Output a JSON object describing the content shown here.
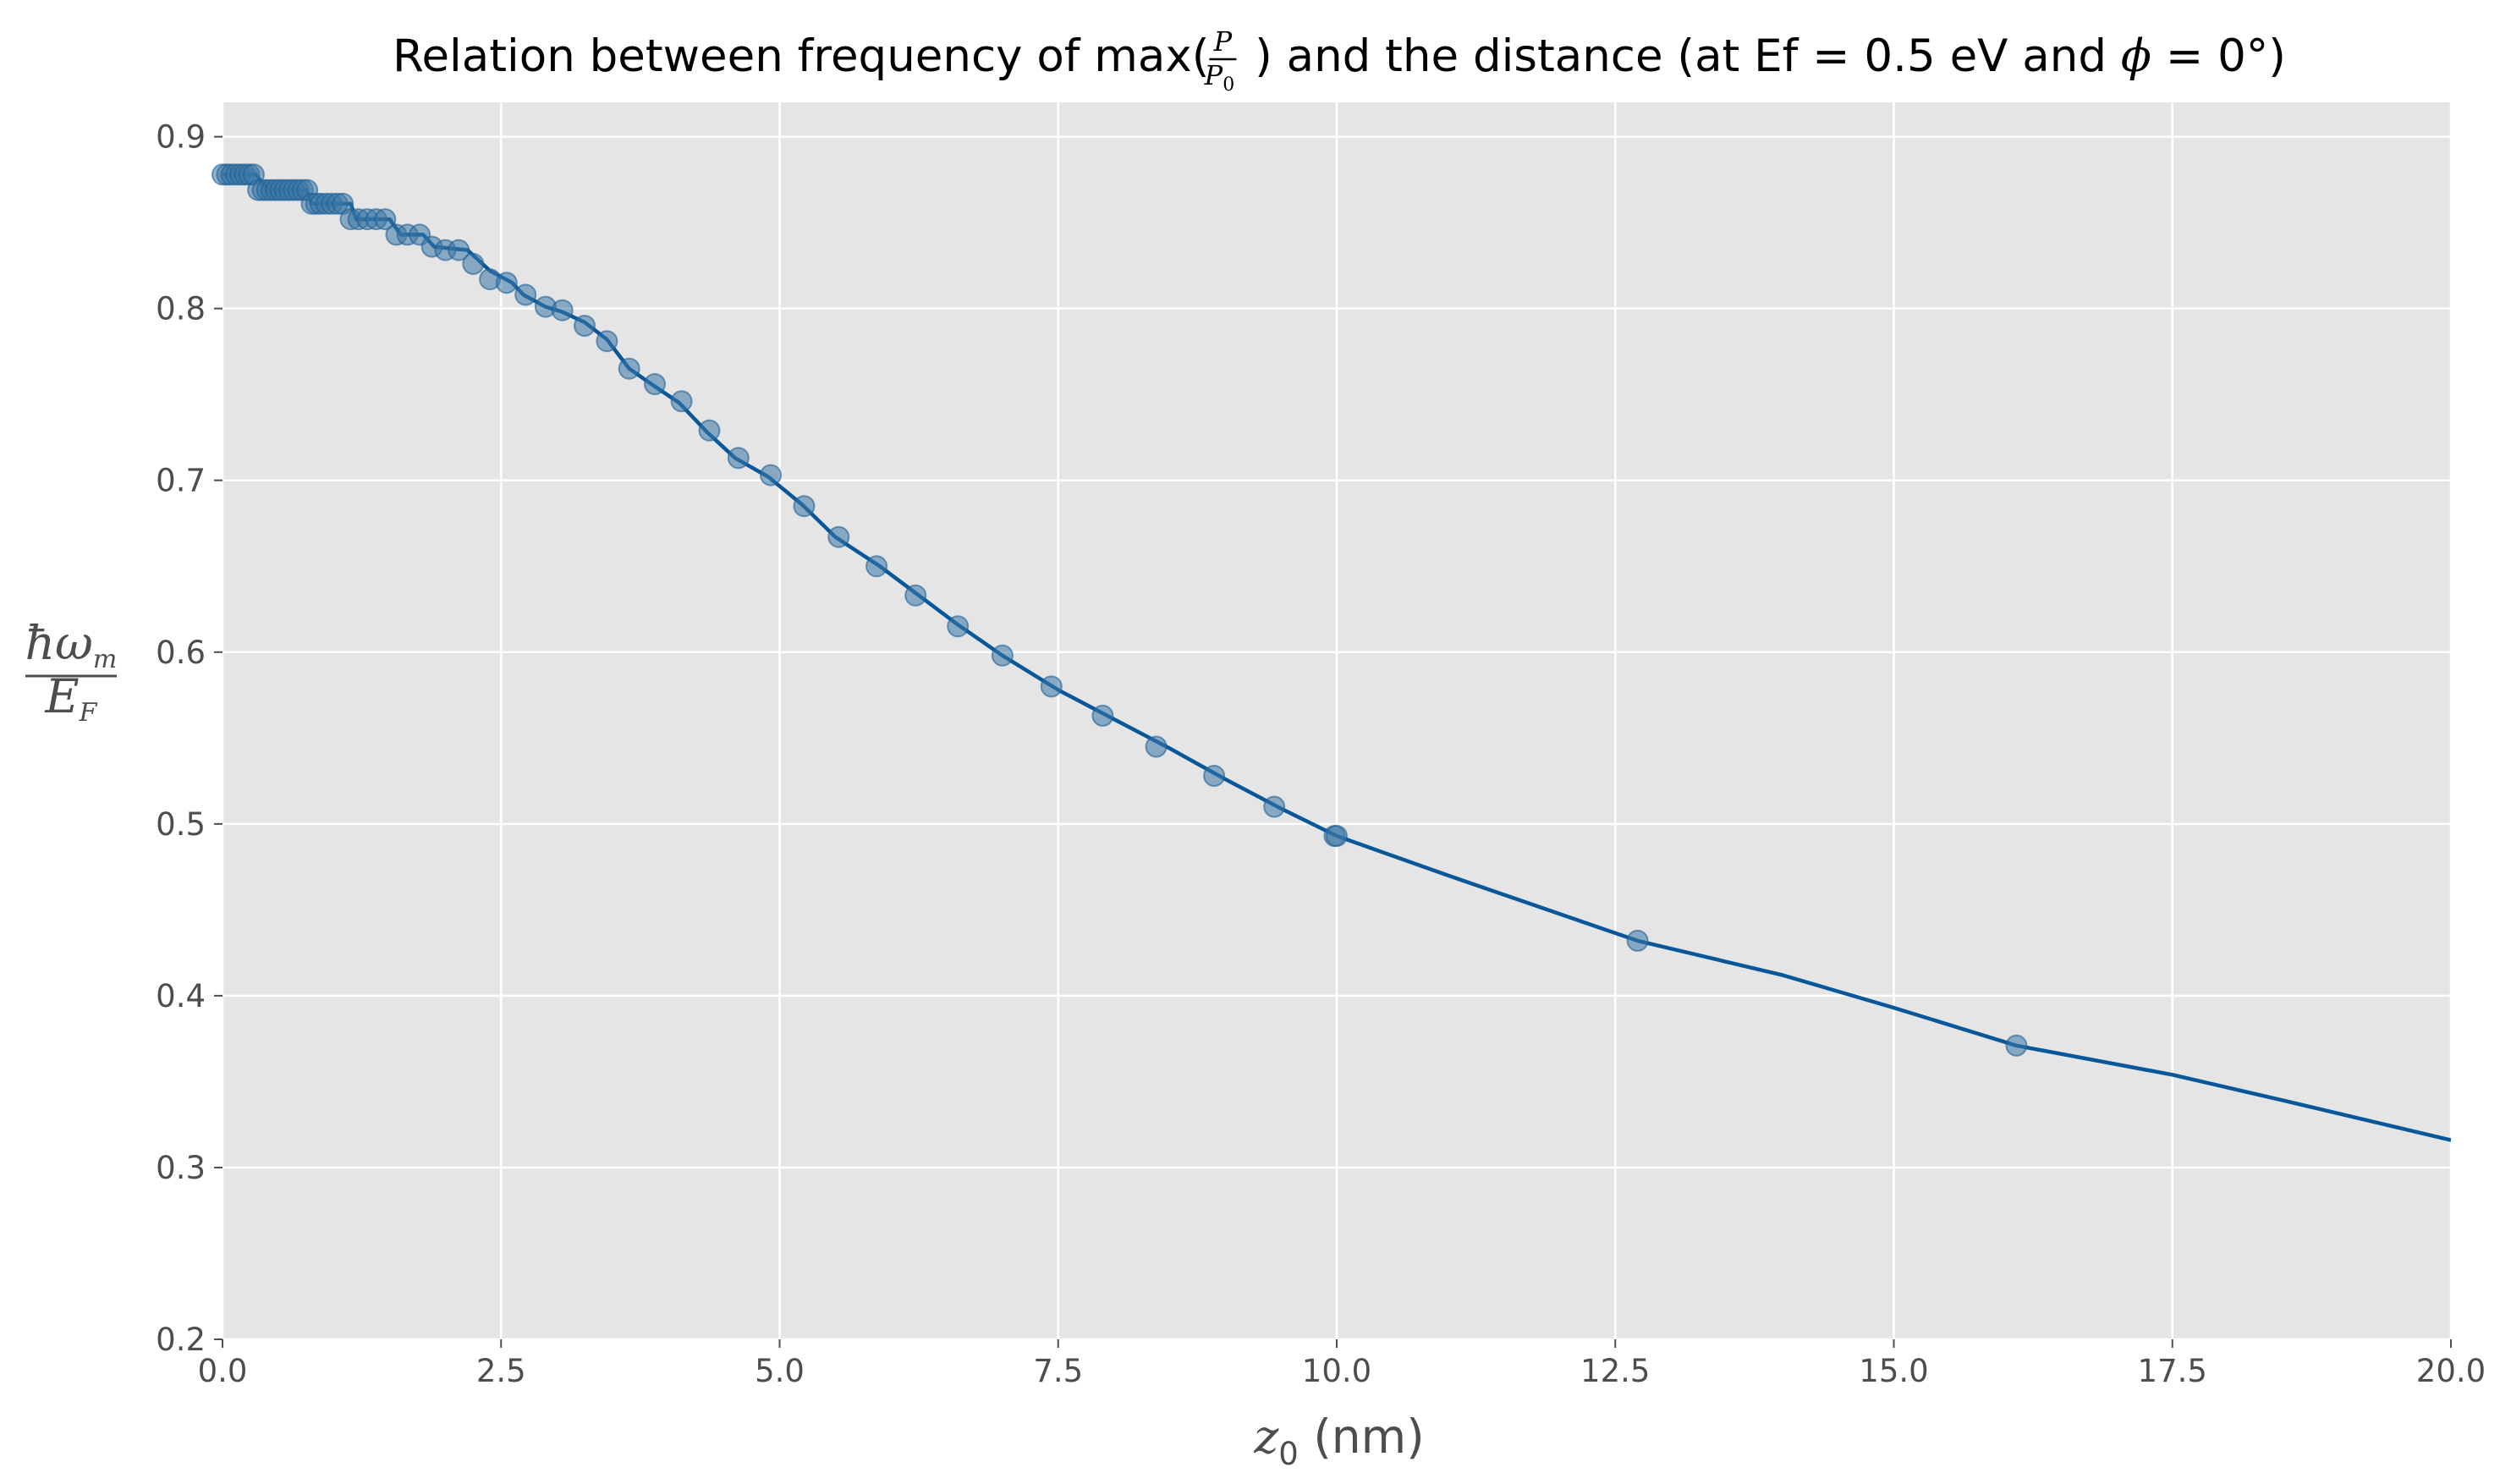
{
  "chart_data": {
    "type": "line",
    "title": {
      "prefix": "Relation between frequency of max(",
      "frac_num": "P",
      "frac_den_main": "P",
      "frac_den_sub": "0",
      "suffix": ") and the distance (at Ef = 0.5 eV and ",
      "phi": "ϕ",
      "phi_eq": " = 0°)"
    },
    "xlabel": {
      "main": "z",
      "sub": "0",
      "unit": " (nm)"
    },
    "ylabel": {
      "num_main": "ħω",
      "num_sub": "m",
      "den_main": "E",
      "den_sub": "F"
    },
    "xlim": [
      0,
      20
    ],
    "ylim": [
      0.2,
      0.92
    ],
    "x_ticks": [
      "0.0",
      "2.5",
      "5.0",
      "7.5",
      "10.0",
      "12.5",
      "15.0",
      "17.5",
      "20.0"
    ],
    "y_ticks": [
      "0.2",
      "0.3",
      "0.4",
      "0.5",
      "0.6",
      "0.7",
      "0.8",
      "0.9"
    ],
    "grid": true,
    "colors": {
      "plot_background": "#e5e5e5",
      "grid": "#ffffff",
      "line": "#08579a",
      "marker": "#3a76a6"
    },
    "series": [
      {
        "style": "line",
        "x": [
          0.0,
          0.3,
          0.4,
          0.75,
          0.8,
          1.15,
          1.2,
          1.5,
          1.6,
          1.8,
          1.9,
          2.2,
          2.4,
          2.6,
          2.7,
          2.9,
          3.05,
          3.25,
          3.45,
          3.65,
          3.85,
          4.1,
          4.35,
          4.6,
          4.9,
          5.2,
          5.5,
          5.9,
          6.25,
          6.6,
          7.0,
          7.5,
          8.0,
          8.5,
          9.0,
          9.5,
          10.0,
          11.0,
          12.7,
          14.0,
          15.0,
          16.1,
          17.5,
          18.5,
          20.0
        ],
        "y": [
          0.878,
          0.878,
          0.869,
          0.869,
          0.861,
          0.861,
          0.852,
          0.852,
          0.843,
          0.843,
          0.836,
          0.834,
          0.822,
          0.815,
          0.808,
          0.801,
          0.798,
          0.792,
          0.782,
          0.765,
          0.756,
          0.745,
          0.728,
          0.713,
          0.702,
          0.686,
          0.667,
          0.65,
          0.633,
          0.616,
          0.598,
          0.578,
          0.561,
          0.544,
          0.526,
          0.509,
          0.493,
          0.47,
          0.432,
          0.412,
          0.393,
          0.371,
          0.354,
          0.339,
          0.316
        ]
      },
      {
        "style": "scatter",
        "x": [
          0.0,
          0.04,
          0.08,
          0.12,
          0.16,
          0.2,
          0.24,
          0.28,
          0.32,
          0.36,
          0.4,
          0.44,
          0.48,
          0.52,
          0.56,
          0.6,
          0.64,
          0.68,
          0.72,
          0.76,
          0.8,
          0.84,
          0.88,
          0.93,
          0.98,
          1.03,
          1.08,
          1.15,
          1.22,
          1.3,
          1.38,
          1.46,
          1.56,
          1.66,
          1.77,
          1.88,
          2.0,
          2.12,
          2.25,
          2.4,
          2.55,
          2.72,
          2.9,
          3.05,
          3.25,
          3.45,
          3.65,
          3.88,
          4.12,
          4.37,
          4.63,
          4.92,
          5.22,
          5.53,
          5.87,
          6.22,
          6.6,
          7.0,
          7.44,
          7.9,
          8.38,
          8.9,
          9.44,
          9.98,
          10.0,
          12.7,
          16.1
        ],
        "y": [
          0.878,
          0.878,
          0.878,
          0.878,
          0.878,
          0.878,
          0.878,
          0.878,
          0.869,
          0.869,
          0.869,
          0.869,
          0.869,
          0.869,
          0.869,
          0.869,
          0.869,
          0.869,
          0.869,
          0.869,
          0.861,
          0.861,
          0.861,
          0.861,
          0.861,
          0.861,
          0.861,
          0.852,
          0.852,
          0.852,
          0.852,
          0.852,
          0.843,
          0.843,
          0.843,
          0.836,
          0.834,
          0.834,
          0.826,
          0.817,
          0.815,
          0.808,
          0.801,
          0.799,
          0.79,
          0.781,
          0.765,
          0.756,
          0.746,
          0.729,
          0.713,
          0.703,
          0.685,
          0.667,
          0.65,
          0.633,
          0.615,
          0.598,
          0.58,
          0.563,
          0.545,
          0.528,
          0.51,
          0.493,
          0.493,
          0.432,
          0.371
        ]
      }
    ]
  }
}
